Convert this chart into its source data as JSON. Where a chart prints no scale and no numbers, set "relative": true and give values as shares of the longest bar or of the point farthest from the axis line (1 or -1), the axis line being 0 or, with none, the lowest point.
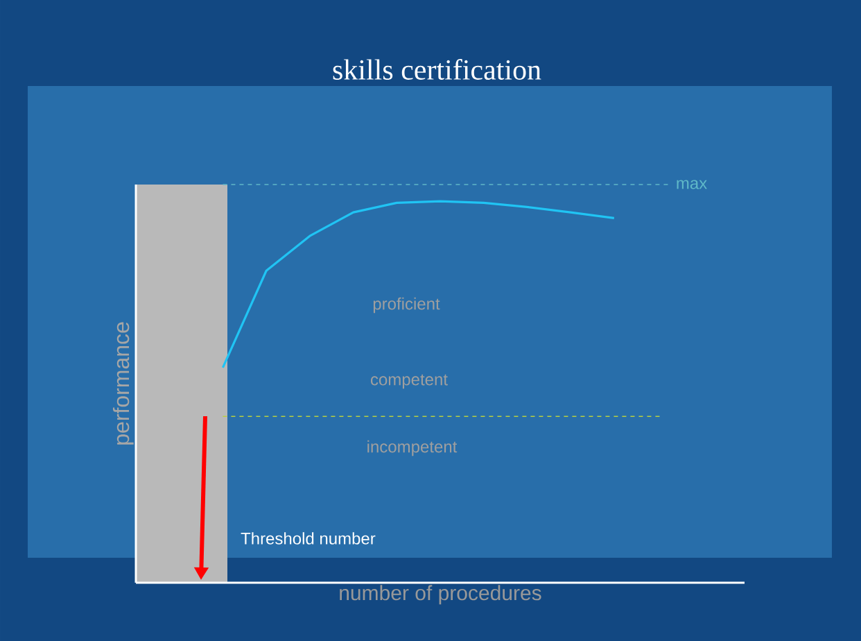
{
  "chart_data": {
    "type": "line",
    "title": "skills certification",
    "xlabel": "number of procedures",
    "ylabel": "performance",
    "relative": true,
    "categories": [
      null,
      null,
      null,
      null,
      null,
      null,
      null,
      null,
      null,
      null,
      null,
      null,
      null,
      null,
      null
    ],
    "series": [
      {
        "color": "#20c4f4",
        "values": [
          null,
          null,
          0.564,
          0.818,
          0.909,
          0.971,
          0.996,
          1,
          0.996,
          0.985,
          0.971,
          0.956,
          null,
          null,
          null
        ]
      }
    ],
    "ref_lines": [
      {
        "axis": "y",
        "value": 1.044,
        "label": "max",
        "color": "#5fb8c8",
        "line_style": "dashed"
      },
      {
        "axis": "y",
        "value": 0.436,
        "color": "#b8d040",
        "line_style": "dashed"
      }
    ],
    "annotations": [
      "proficient",
      "competent",
      "incompetent",
      "Threshold number"
    ]
  }
}
